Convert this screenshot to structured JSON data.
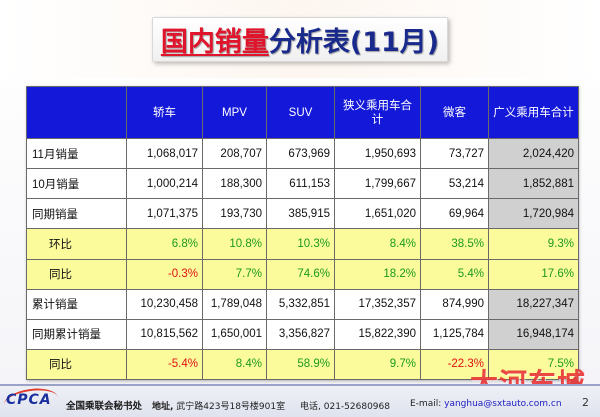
{
  "title": {
    "red": "国内销量",
    "blue": "分析表(11月)"
  },
  "table": {
    "headers": [
      "",
      "轿车",
      "MPV",
      "SUV",
      "狭义乘用车合计",
      "微客",
      "广义乘用车合计"
    ],
    "rows": [
      {
        "label": "11月销量",
        "style": "white",
        "values": [
          "1,068,017",
          "208,707",
          "673,969",
          "1,950,693",
          "73,727",
          "2,024,420"
        ]
      },
      {
        "label": "10月销量",
        "style": "white",
        "values": [
          "1,000,214",
          "188,300",
          "611,153",
          "1,799,667",
          "53,214",
          "1,852,881"
        ]
      },
      {
        "label": "同期销量",
        "style": "white",
        "values": [
          "1,071,375",
          "193,730",
          "385,915",
          "1,651,020",
          "69,964",
          "1,720,984"
        ]
      },
      {
        "label": "环比",
        "style": "yellow",
        "values": [
          "6.8%",
          "10.8%",
          "10.3%",
          "8.4%",
          "38.5%",
          "9.3%"
        ]
      },
      {
        "label": "同比",
        "style": "yellow",
        "values": [
          "-0.3%",
          "7.7%",
          "74.6%",
          "18.2%",
          "5.4%",
          "17.6%"
        ]
      },
      {
        "label": "累计销量",
        "style": "white",
        "values": [
          "10,230,458",
          "1,789,048",
          "5,332,851",
          "17,352,357",
          "874,990",
          "18,227,347"
        ]
      },
      {
        "label": "同期累计销量",
        "style": "white",
        "values": [
          "10,815,562",
          "1,650,001",
          "3,356,827",
          "15,822,390",
          "1,125,784",
          "16,948,174"
        ]
      },
      {
        "label": "同比",
        "style": "yellow",
        "values": [
          "-5.4%",
          "8.4%",
          "58.9%",
          "9.7%",
          "-22.3%",
          "7.5%"
        ]
      }
    ]
  },
  "footer": {
    "logo": "CPCA",
    "association": "全国乘联会秘书处",
    "address_label": "地址,",
    "address": "武宁路423号18号楼901室",
    "tel_label": "电话,",
    "tel": "021-52680968",
    "email_label": "E-mail:",
    "email": "yanghua@sxtauto.com.cn",
    "page": "2"
  },
  "watermark": "大河车城",
  "colors": {
    "header_bg": "#1418d8",
    "highlight_row": "#fbfb9c",
    "total_col": "#d0d0d0",
    "positive": "#1c9a1c",
    "negative": "#e01010",
    "title_red": "#e0142a",
    "title_blue": "#1a2a8c"
  }
}
